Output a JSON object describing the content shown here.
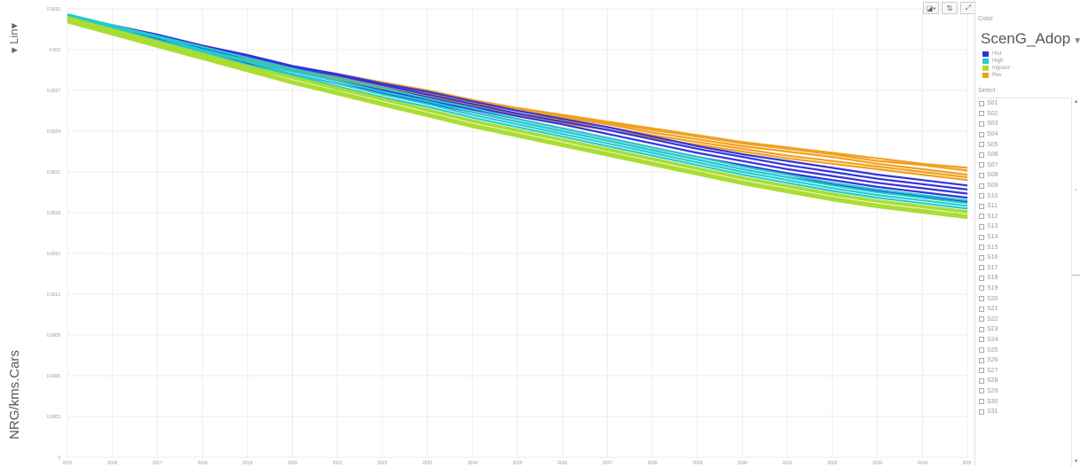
{
  "y_axis": {
    "scale_toggle": "▾ Lin▾",
    "label": "NRG/kms.Cars"
  },
  "toolbar": {
    "buttons": [
      "◪▪",
      "⇅",
      "⤢"
    ]
  },
  "panel": {
    "color_caption": "Color",
    "color_variable": "ScenG_Adop",
    "color_variable_caret": "▼",
    "legend": [
      {
        "label": "Hist",
        "color": "#3333dd"
      },
      {
        "label": "High",
        "color": "#22cccc"
      },
      {
        "label": "Ingrace",
        "color": "#aadd33"
      },
      {
        "label": "Rev",
        "color": "#f0a020"
      }
    ],
    "select_caption": "Select",
    "select_items": [
      "S01",
      "S02",
      "S03",
      "S04",
      "S05",
      "S06",
      "S07",
      "S08",
      "S09",
      "S10",
      "S11",
      "S12",
      "S13",
      "S14",
      "S15",
      "S16",
      "S17",
      "S18",
      "S19",
      "S20",
      "S21",
      "S22",
      "S23",
      "S24",
      "S25",
      "S26",
      "S27",
      "S28",
      "S29",
      "S30",
      "S31"
    ],
    "scroll_up": "▲",
    "scroll_down": "▼"
  },
  "chart_data": {
    "type": "line",
    "x": [
      2015,
      2016,
      2017,
      2018,
      2019,
      2020,
      2021,
      2022,
      2023,
      2024,
      2025,
      2026,
      2027,
      2028,
      2029,
      2030,
      2031,
      2032,
      2033,
      2034,
      2035
    ],
    "xlim": [
      2015,
      2035
    ],
    "ylim": [
      0,
      0.0033
    ],
    "yticks": [
      0,
      0.0003,
      0.0006,
      0.0009,
      0.0012,
      0.0015,
      0.0018,
      0.0021,
      0.0024,
      0.0027,
      0.003,
      0.0033
    ],
    "ytick_labels": [
      "0",
      "0.0003",
      "0.0006",
      "0.0009",
      "0.0012",
      "0.0015",
      "0.0018",
      "0.0021",
      "0.0024",
      "0.0027",
      "0.003",
      "0.0033"
    ],
    "grid": true,
    "series_groups": [
      {
        "group": "Rev",
        "color": "#f0a020",
        "runs": [
          [
            0.00325,
            0.00318,
            0.00311,
            0.00303,
            0.00296,
            0.00288,
            0.00282,
            0.00276,
            0.0027,
            0.00263,
            0.00257,
            0.00252,
            0.00247,
            0.00242,
            0.00237,
            0.00232,
            0.00228,
            0.00224,
            0.0022,
            0.00216,
            0.00213
          ],
          [
            0.00324,
            0.00317,
            0.0031,
            0.00302,
            0.00295,
            0.00287,
            0.00281,
            0.00275,
            0.00269,
            0.00262,
            0.00256,
            0.00251,
            0.00246,
            0.00241,
            0.00236,
            0.00231,
            0.00227,
            0.00223,
            0.00218,
            0.00215,
            0.00211
          ],
          [
            0.00323,
            0.00316,
            0.00309,
            0.00301,
            0.00294,
            0.00286,
            0.0028,
            0.00274,
            0.00268,
            0.00261,
            0.00255,
            0.0025,
            0.00245,
            0.00239,
            0.00234,
            0.00229,
            0.00225,
            0.00221,
            0.00216,
            0.00212,
            0.00208
          ],
          [
            0.00322,
            0.00315,
            0.00308,
            0.003,
            0.00293,
            0.00285,
            0.00279,
            0.00273,
            0.00266,
            0.00259,
            0.00253,
            0.00248,
            0.00243,
            0.00237,
            0.00232,
            0.00227,
            0.00222,
            0.00218,
            0.00214,
            0.0021,
            0.00206
          ],
          [
            0.00321,
            0.00314,
            0.00307,
            0.00299,
            0.00292,
            0.00284,
            0.00278,
            0.00271,
            0.00265,
            0.00258,
            0.00252,
            0.00246,
            0.00241,
            0.00235,
            0.0023,
            0.00225,
            0.0022,
            0.00216,
            0.00212,
            0.00208,
            0.00204
          ]
        ]
      },
      {
        "group": "Hist",
        "color": "#3333dd",
        "runs": [
          [
            0.00325,
            0.00318,
            0.00311,
            0.00303,
            0.00296,
            0.00288,
            0.00282,
            0.00275,
            0.00269,
            0.00262,
            0.00255,
            0.00249,
            0.00243,
            0.00236,
            0.00229,
            0.00223,
            0.00218,
            0.00213,
            0.00208,
            0.00204,
            0.002
          ],
          [
            0.00324,
            0.00317,
            0.0031,
            0.00302,
            0.00295,
            0.00287,
            0.00281,
            0.00274,
            0.00267,
            0.0026,
            0.00253,
            0.00247,
            0.00241,
            0.00234,
            0.00227,
            0.00221,
            0.00215,
            0.0021,
            0.00205,
            0.00201,
            0.00197
          ],
          [
            0.00323,
            0.00316,
            0.00309,
            0.00301,
            0.00294,
            0.00286,
            0.00279,
            0.00272,
            0.00265,
            0.00258,
            0.00251,
            0.00245,
            0.00238,
            0.00231,
            0.00224,
            0.00218,
            0.00212,
            0.00207,
            0.00202,
            0.00198,
            0.00194
          ],
          [
            0.00322,
            0.00315,
            0.00308,
            0.003,
            0.00292,
            0.00284,
            0.00277,
            0.0027,
            0.00263,
            0.00256,
            0.00249,
            0.00242,
            0.00235,
            0.00228,
            0.00221,
            0.00215,
            0.00209,
            0.00204,
            0.00199,
            0.00195,
            0.00191
          ],
          [
            0.00321,
            0.00314,
            0.00306,
            0.00298,
            0.0029,
            0.00282,
            0.00275,
            0.00268,
            0.00261,
            0.00254,
            0.00247,
            0.0024,
            0.00233,
            0.00226,
            0.00219,
            0.00212,
            0.00206,
            0.00201,
            0.00196,
            0.00192,
            0.00188
          ]
        ]
      },
      {
        "group": "High",
        "color": "#22cccc",
        "runs": [
          [
            0.00326,
            0.00318,
            0.0031,
            0.00302,
            0.00294,
            0.00286,
            0.00279,
            0.00272,
            0.00264,
            0.00257,
            0.00249,
            0.00242,
            0.00235,
            0.00228,
            0.00221,
            0.00214,
            0.00208,
            0.00202,
            0.00197,
            0.00193,
            0.00189
          ],
          [
            0.00325,
            0.00317,
            0.00309,
            0.003,
            0.00292,
            0.00284,
            0.00277,
            0.00269,
            0.00262,
            0.00254,
            0.00247,
            0.0024,
            0.00233,
            0.00226,
            0.00219,
            0.00212,
            0.00206,
            0.002,
            0.00195,
            0.00191,
            0.00187
          ],
          [
            0.00324,
            0.00316,
            0.00307,
            0.00299,
            0.00291,
            0.00282,
            0.00275,
            0.00267,
            0.0026,
            0.00252,
            0.00245,
            0.00238,
            0.00231,
            0.00224,
            0.00217,
            0.0021,
            0.00204,
            0.00198,
            0.00193,
            0.00189,
            0.00185
          ],
          [
            0.00323,
            0.00315,
            0.00306,
            0.00298,
            0.00289,
            0.00281,
            0.00273,
            0.00265,
            0.00258,
            0.0025,
            0.00243,
            0.00236,
            0.00229,
            0.00222,
            0.00215,
            0.00208,
            0.00202,
            0.00196,
            0.00191,
            0.00187,
            0.00183
          ],
          [
            0.00322,
            0.00314,
            0.00305,
            0.00296,
            0.00288,
            0.00279,
            0.00271,
            0.00263,
            0.00256,
            0.00248,
            0.00241,
            0.00234,
            0.00227,
            0.0022,
            0.00213,
            0.00206,
            0.002,
            0.00194,
            0.00189,
            0.00185,
            0.00181
          ]
        ]
      },
      {
        "group": "Ingrace",
        "color": "#aadd33",
        "runs": [
          [
            0.00324,
            0.00315,
            0.00306,
            0.00297,
            0.00288,
            0.0028,
            0.00272,
            0.00264,
            0.00256,
            0.00248,
            0.00241,
            0.00234,
            0.00227,
            0.0022,
            0.00213,
            0.00206,
            0.002,
            0.00194,
            0.00189,
            0.00185,
            0.00181
          ],
          [
            0.00323,
            0.00314,
            0.00305,
            0.00296,
            0.00287,
            0.00279,
            0.00271,
            0.00263,
            0.00255,
            0.00247,
            0.0024,
            0.00233,
            0.00226,
            0.00219,
            0.00212,
            0.00205,
            0.00199,
            0.00193,
            0.00188,
            0.00184,
            0.0018
          ],
          [
            0.00322,
            0.00313,
            0.00304,
            0.00295,
            0.00286,
            0.00277,
            0.00269,
            0.00261,
            0.00253,
            0.00245,
            0.00238,
            0.00231,
            0.00224,
            0.00217,
            0.0021,
            0.00203,
            0.00197,
            0.00191,
            0.00186,
            0.00182,
            0.00178
          ],
          [
            0.00321,
            0.00312,
            0.00303,
            0.00294,
            0.00285,
            0.00276,
            0.00268,
            0.0026,
            0.00252,
            0.00244,
            0.00237,
            0.0023,
            0.00223,
            0.00216,
            0.00209,
            0.00202,
            0.00196,
            0.0019,
            0.00185,
            0.00181,
            0.00177
          ],
          [
            0.0032,
            0.00311,
            0.00302,
            0.00293,
            0.00284,
            0.00275,
            0.00267,
            0.00259,
            0.00251,
            0.00243,
            0.00236,
            0.00229,
            0.00222,
            0.00215,
            0.00208,
            0.00201,
            0.00195,
            0.00189,
            0.00184,
            0.0018,
            0.00176
          ]
        ]
      }
    ]
  }
}
